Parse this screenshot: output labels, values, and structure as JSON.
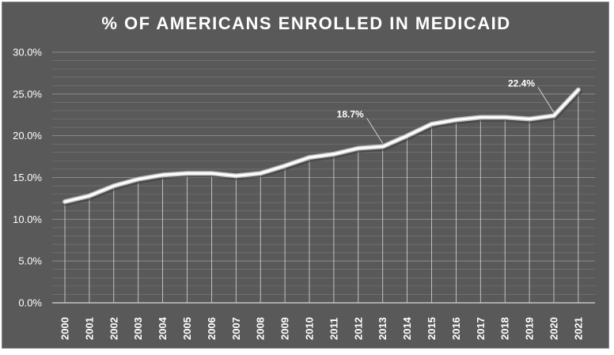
{
  "chart_data": {
    "type": "line",
    "title": "% OF AMERICANS ENROLLED IN MEDICAID",
    "xlabel": "",
    "ylabel": "",
    "categories": [
      "2000",
      "2001",
      "2002",
      "2003",
      "2004",
      "2005",
      "2006",
      "2007",
      "2008",
      "2009",
      "2010",
      "2011",
      "2012",
      "2013",
      "2014",
      "2015",
      "2016",
      "2017",
      "2018",
      "2019",
      "2020",
      "2021"
    ],
    "series": [
      {
        "values": [
          12.1,
          12.8,
          14.0,
          14.8,
          15.3,
          15.5,
          15.5,
          15.2,
          15.5,
          16.4,
          17.4,
          17.8,
          18.5,
          18.7,
          20.0,
          21.4,
          21.9,
          22.2,
          22.2,
          22.0,
          22.4,
          25.5
        ]
      }
    ],
    "ylim": [
      0,
      30
    ],
    "y_ticks": [
      "0.0%",
      "5.0%",
      "10.0%",
      "15.0%",
      "20.0%",
      "25.0%",
      "30.0%"
    ],
    "annotations": [
      {
        "category": "2013",
        "label": "18.7%"
      },
      {
        "category": "2020",
        "label": "22.4%"
      }
    ],
    "grid": true,
    "legend": "none",
    "colors": {
      "background": "#595959",
      "line": "#ffffff",
      "gridline": "#7a7a7a",
      "dropline": "#d9d9d9"
    }
  }
}
